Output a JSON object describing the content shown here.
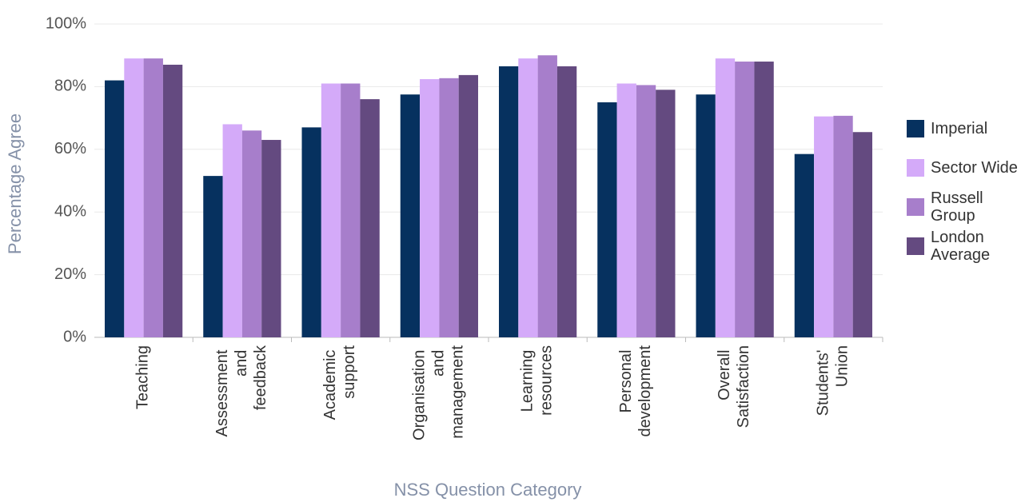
{
  "chart_data": {
    "type": "bar",
    "x_label": "NSS Question Category",
    "y_label": "Percentage Agree",
    "categories": [
      "Teaching",
      "Assessment and feedback",
      "Academic support",
      "Organisation and management",
      "Learning resources",
      "Personal development",
      "Overall Satisfaction",
      "Students' Union"
    ],
    "series": [
      {
        "name": "Imperial",
        "color": "#06315f",
        "values": [
          82,
          51.5,
          67,
          77.5,
          86.5,
          75,
          77.5,
          58.5
        ]
      },
      {
        "name": "Sector Wide",
        "color": "#d4aaf9",
        "values": [
          89,
          68,
          81,
          82.4,
          89,
          81,
          89,
          70.5
        ]
      },
      {
        "name": "Russell Group",
        "color": "#a77ecb",
        "values": [
          89,
          66,
          81,
          82.7,
          90,
          80.5,
          88,
          70.7
        ]
      },
      {
        "name": "London Average",
        "color": "#644a80",
        "values": [
          87,
          63,
          76,
          83.7,
          86.5,
          79,
          88,
          65.5
        ]
      }
    ],
    "ylim": [
      0,
      100
    ],
    "yticks": [
      {
        "value": 0,
        "label": "0%"
      },
      {
        "value": 20,
        "label": "20%"
      },
      {
        "value": 40,
        "label": "40%"
      },
      {
        "value": 60,
        "label": "60%"
      },
      {
        "value": 80,
        "label": "80%"
      },
      {
        "value": 100,
        "label": "100%"
      }
    ],
    "grid": true
  }
}
